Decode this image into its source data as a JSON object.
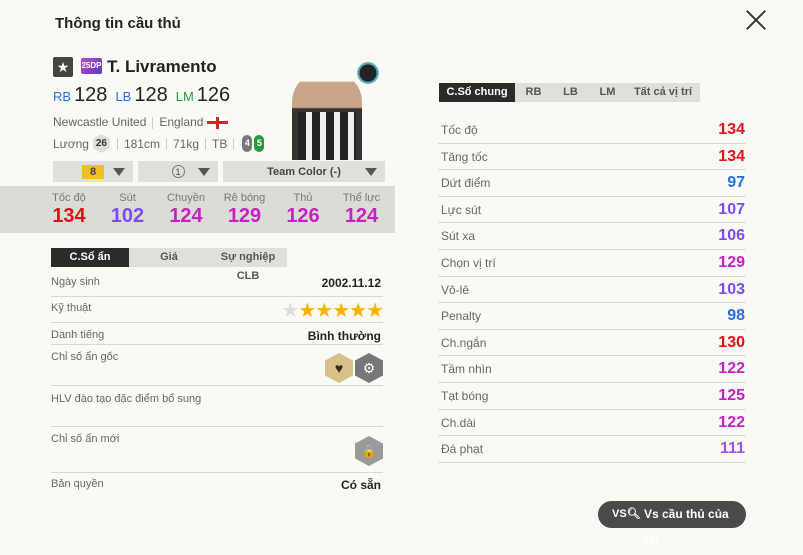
{
  "title": "Thông tin cầu thủ",
  "player": {
    "name": "T. Livramento",
    "season": "25DP",
    "positions": [
      {
        "pos": "RB",
        "ovr": "128",
        "color": "#2a6de0"
      },
      {
        "pos": "LB",
        "ovr": "128",
        "color": "#2a6de0"
      },
      {
        "pos": "LM",
        "ovr": "126",
        "color": "#2a9a3a"
      }
    ],
    "club": "Newcastle United",
    "nation": "England",
    "salary_label": "Lương",
    "salary": "26",
    "height": "181cm",
    "weight": "71kg",
    "body": "TB",
    "weak_foot": "4",
    "strong_foot": "5"
  },
  "selectors": {
    "upgrade": "8",
    "level": "1",
    "team_color": "Team Color (-)"
  },
  "summary_stats": [
    {
      "label": "Tốc độ",
      "value": "134",
      "color": "#e0101a"
    },
    {
      "label": "Sút",
      "value": "102",
      "color": "#7a4cf0"
    },
    {
      "label": "Chuyền",
      "value": "124",
      "color": "#c81ec8"
    },
    {
      "label": "Rê bóng",
      "value": "129",
      "color": "#c81ec8"
    },
    {
      "label": "Thủ",
      "value": "126",
      "color": "#c81ec8"
    },
    {
      "label": "Thể lực",
      "value": "124",
      "color": "#c81ec8"
    }
  ],
  "left_tabs": [
    "C.Sổ ẩn",
    "Giá",
    "Sự nghiệp CLB"
  ],
  "details": {
    "birth_label": "Ngày sinh",
    "birth": "2002.11.12",
    "skill_label": "Kỹ thuật",
    "skill_stars": 5,
    "skill_max": 6,
    "reputation_label": "Danh tiếng",
    "reputation": "Bình thường",
    "traits_label": "Chỉ số ẩn gốc",
    "coach_label": "HLV đào tạo đặc điểm bổ sung",
    "new_traits_label": "Chỉ số ẩn mới",
    "license_label": "Bản quyền",
    "license": "Có sẵn"
  },
  "right_tabs": [
    "C.Sổ chung",
    "RB",
    "LB",
    "LM",
    "Tất cả vị trí"
  ],
  "stats": [
    {
      "label": "Tốc độ",
      "value": "134",
      "color": "#e0101a"
    },
    {
      "label": "Tăng tốc",
      "value": "134",
      "color": "#e0101a"
    },
    {
      "label": "Dứt điểm",
      "value": "97",
      "color": "#2a6de0"
    },
    {
      "label": "Lực sút",
      "value": "107",
      "color": "#7a4cf0"
    },
    {
      "label": "Sút xa",
      "value": "106",
      "color": "#7a4cf0"
    },
    {
      "label": "Chọn vị trí",
      "value": "129",
      "color": "#c81ec8"
    },
    {
      "label": "Vô-lê",
      "value": "103",
      "color": "#7a4cf0"
    },
    {
      "label": "Penalty",
      "value": "98",
      "color": "#2a6de0"
    },
    {
      "label": "Ch.ngắn",
      "value": "130",
      "color": "#e0101a"
    },
    {
      "label": "Tầm nhìn",
      "value": "122",
      "color": "#c81ec8"
    },
    {
      "label": "Tạt bóng",
      "value": "125",
      "color": "#c81ec8"
    },
    {
      "label": "Ch.dài",
      "value": "122",
      "color": "#c81ec8"
    },
    {
      "label": "Đá phạt",
      "value": "111",
      "color": "#a050f0"
    }
  ],
  "compare_button": "Vs cầu thủ của tôi"
}
